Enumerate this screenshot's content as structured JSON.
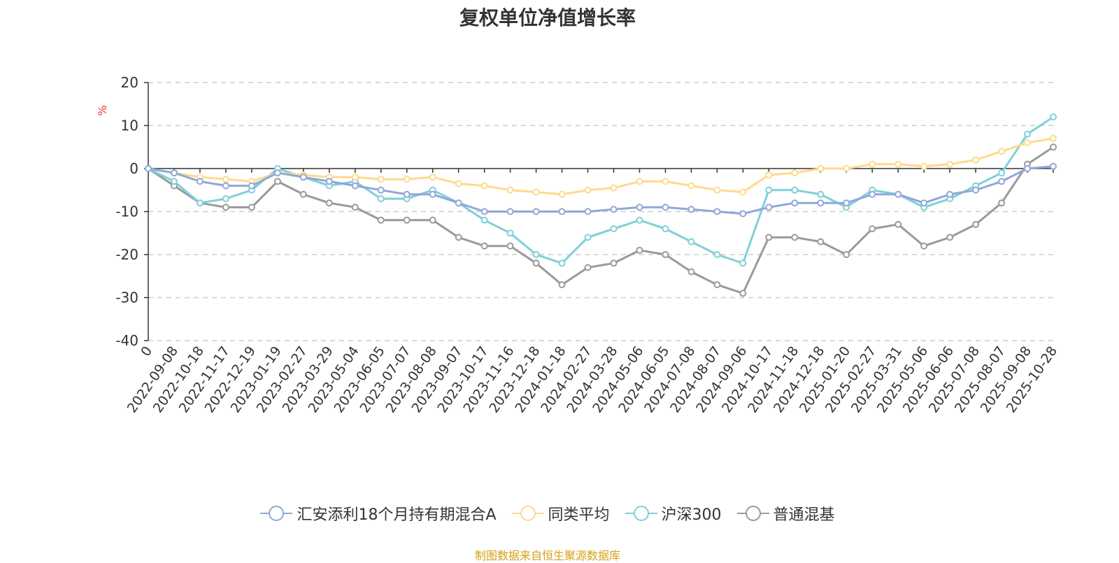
{
  "title": "复权单位净值增长率",
  "source": "制图数据来自恒生聚源数据库",
  "chart_data": {
    "type": "line",
    "title": "复权单位净值增长率",
    "ylabel": "%",
    "ylim": [
      -40,
      20
    ],
    "yticks": [
      20,
      10,
      0,
      -10,
      -20,
      -30,
      -40
    ],
    "grid": true,
    "legend_position": "bottom",
    "x_tick_labels": [
      "0",
      "2022-09-08",
      "2022-10-18",
      "2022-11-17",
      "2022-12-19",
      "2023-01-19",
      "2023-02-27",
      "2023-03-29",
      "2023-05-04",
      "2023-06-05",
      "2023-07-07",
      "2023-08-08",
      "2023-09-07",
      "2023-10-17",
      "2023-11-16",
      "2023-12-18",
      "2024-01-18",
      "2024-02-27",
      "2024-03-28",
      "2024-05-06",
      "2024-06-05",
      "2024-07-08",
      "2024-08-07",
      "2024-09-06",
      "2024-10-17",
      "2024-11-18",
      "2024-12-18",
      "2025-01-20",
      "2025-02-27",
      "2025-03-31",
      "2025-05-06",
      "2025-06-06",
      "2025-07-08",
      "2025-08-07",
      "2025-09-08",
      "2025-10-28"
    ],
    "x": [
      "0",
      "2022-09-08",
      "2022-10-18",
      "2022-11-17",
      "2022-12-19",
      "2023-01-19",
      "2023-02-27",
      "2023-03-29",
      "2023-05-04",
      "2023-06-05",
      "2023-07-07",
      "2023-08-08",
      "2023-09-07",
      "2023-10-17",
      "2023-11-16",
      "2023-12-18",
      "2024-01-18",
      "2024-02-27",
      "2024-03-28",
      "2024-05-06",
      "2024-06-05",
      "2024-07-08",
      "2024-08-07",
      "2024-09-06",
      "2024-10-17",
      "2024-11-18",
      "2024-12-18",
      "2025-01-20",
      "2025-02-27",
      "2025-03-31",
      "2025-05-06",
      "2025-06-06",
      "2025-07-08",
      "2025-08-07",
      "2025-09-08",
      "2025-10-28"
    ],
    "series": [
      {
        "name": "汇安添利18个月持有期混合A",
        "color": "#8fa8d8",
        "values": [
          0,
          -1,
          -3,
          -4,
          -4,
          -1,
          -2,
          -3,
          -4,
          -5,
          -6,
          -6,
          -8,
          -10,
          -10,
          -10,
          -10,
          -10,
          -9.5,
          -9,
          -9,
          -9.5,
          -10,
          -10.5,
          -9,
          -8,
          -8,
          -8,
          -6,
          -6,
          -8,
          -6,
          -5,
          -3,
          0,
          0.5
        ]
      },
      {
        "name": "同类平均",
        "color": "#ffd98e",
        "values": [
          0,
          -1,
          -2,
          -2.5,
          -3,
          -1,
          -1.5,
          -2,
          -2,
          -2.5,
          -2.5,
          -2,
          -3.5,
          -4,
          -5,
          -5.5,
          -6,
          -5,
          -4.5,
          -3,
          -3,
          -4,
          -5,
          -5.5,
          -1.5,
          -1,
          0,
          0,
          1,
          1,
          0.5,
          1,
          2,
          4,
          6,
          7
        ]
      },
      {
        "name": "沪深300",
        "color": "#7fd0d8",
        "values": [
          0,
          -3,
          -8,
          -7,
          -5,
          0,
          -2,
          -4,
          -3,
          -7,
          -7,
          -5,
          -8,
          -12,
          -15,
          -20,
          -22,
          -16,
          -14,
          -12,
          -14,
          -17,
          -20,
          -22,
          -5,
          -5,
          -6,
          -9,
          -5,
          -6,
          -9,
          -7,
          -4,
          -1,
          8,
          12
        ]
      },
      {
        "name": "普通混基",
        "color": "#9a9a9a",
        "values": [
          0,
          -4,
          -8,
          -9,
          -9,
          -3,
          -6,
          -8,
          -9,
          -12,
          -12,
          -12,
          -16,
          -18,
          -18,
          -22,
          -27,
          -23,
          -22,
          -19,
          -20,
          -24,
          -27,
          -29,
          -16,
          -16,
          -17,
          -20,
          -14,
          -13,
          -18,
          -16,
          -13,
          -8,
          1,
          5
        ]
      }
    ]
  }
}
